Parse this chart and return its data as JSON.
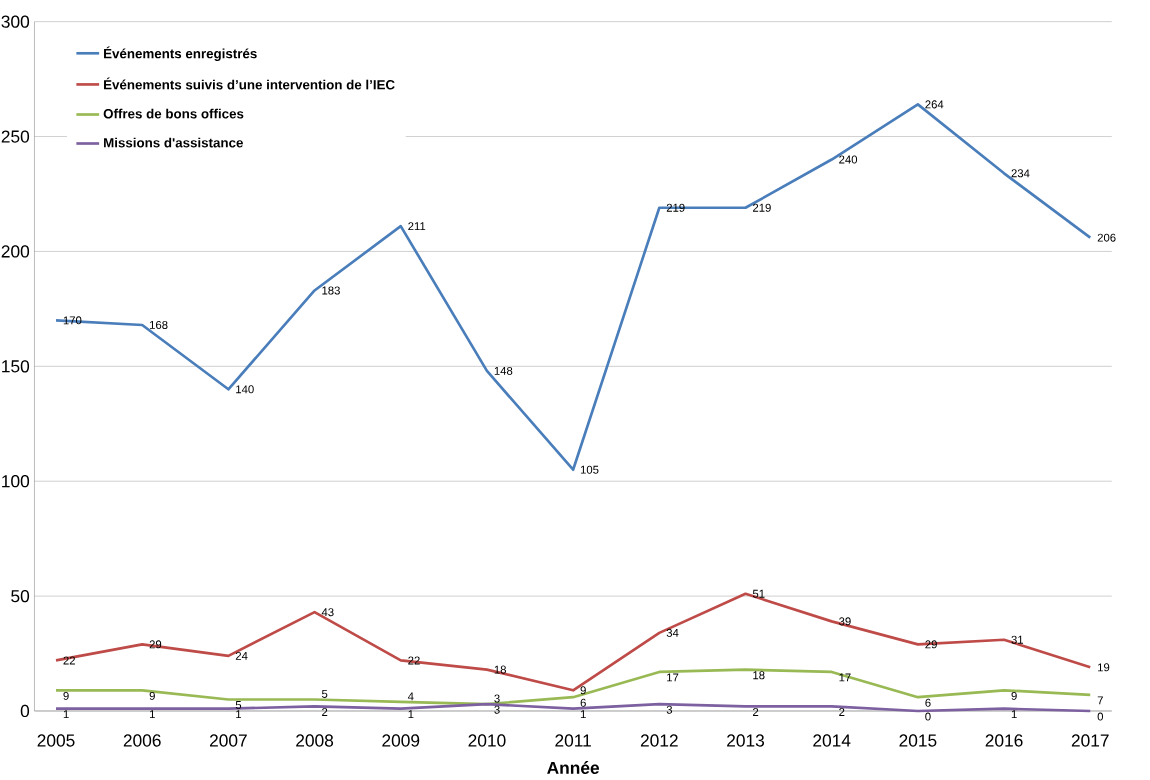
{
  "chart_data": {
    "type": "line",
    "xlabel": "Année",
    "categories": [
      "2005",
      "2006",
      "2007",
      "2008",
      "2009",
      "2010",
      "2011",
      "2012",
      "2013",
      "2014",
      "2015",
      "2016",
      "2017"
    ],
    "series": [
      {
        "name": "Événements enregistrés",
        "color": "#4a7ebb",
        "values": [
          170,
          168,
          140,
          183,
          211,
          148,
          105,
          219,
          219,
          240,
          264,
          234,
          206
        ]
      },
      {
        "name": "Événements suivis d’une intervention de l’IEC",
        "color": "#be4b48",
        "values": [
          22,
          29,
          24,
          43,
          22,
          18,
          9,
          34,
          51,
          39,
          29,
          31,
          19
        ]
      },
      {
        "name": "Offres de bons offices",
        "color": "#98b954",
        "values": [
          9,
          9,
          5,
          5,
          4,
          3,
          6,
          17,
          18,
          17,
          6,
          9,
          7
        ]
      },
      {
        "name": "Missions d'assistance",
        "color": "#7d60a0",
        "values": [
          1,
          1,
          1,
          2,
          1,
          3,
          1,
          3,
          2,
          2,
          0,
          1,
          0
        ]
      }
    ],
    "ylim": [
      0,
      300
    ],
    "yticks": [
      0,
      50,
      100,
      150,
      200,
      250,
      300
    ],
    "grid": "y",
    "legend": "top left",
    "data_labels": true,
    "marker": "none",
    "line_style": "solid"
  }
}
